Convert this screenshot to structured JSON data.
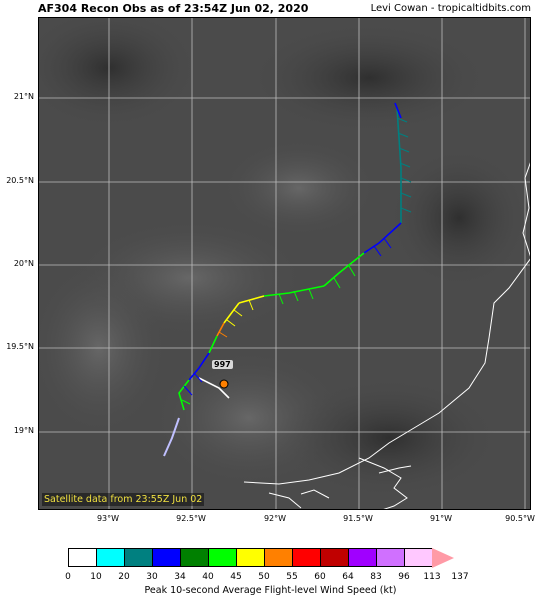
{
  "header": {
    "title": "AF304 Recon Obs as of 23:54Z Jun 02, 2020",
    "credit": "Levi Cowan - tropicaltidbits.com"
  },
  "map": {
    "latitude_labels": [
      "21°N",
      "20.5°N",
      "20°N",
      "19.5°N",
      "19°N"
    ],
    "longitude_labels": [
      "93°W",
      "92.5°W",
      "92°W",
      "91.5°W",
      "91°W",
      "90.5°W"
    ],
    "satellite_note": "Satellite data from 23:55Z Jun 02",
    "center_pressure": "997"
  },
  "legend": {
    "caption": "Peak 10-second Average Flight-level Wind Speed (kt)",
    "ticks": [
      "0",
      "10",
      "20",
      "30",
      "34",
      "40",
      "45",
      "50",
      "55",
      "60",
      "64",
      "83",
      "96",
      "113",
      "137"
    ],
    "colors": [
      "#ffffff",
      "#00ffff",
      "#008080",
      "#0000ff",
      "#008000",
      "#00ff00",
      "#ffff00",
      "#ff8000",
      "#ff0000",
      "#c00000",
      "#a000ff",
      "#d070ff",
      "#ffc8ff",
      "#ff9aa6"
    ]
  }
}
